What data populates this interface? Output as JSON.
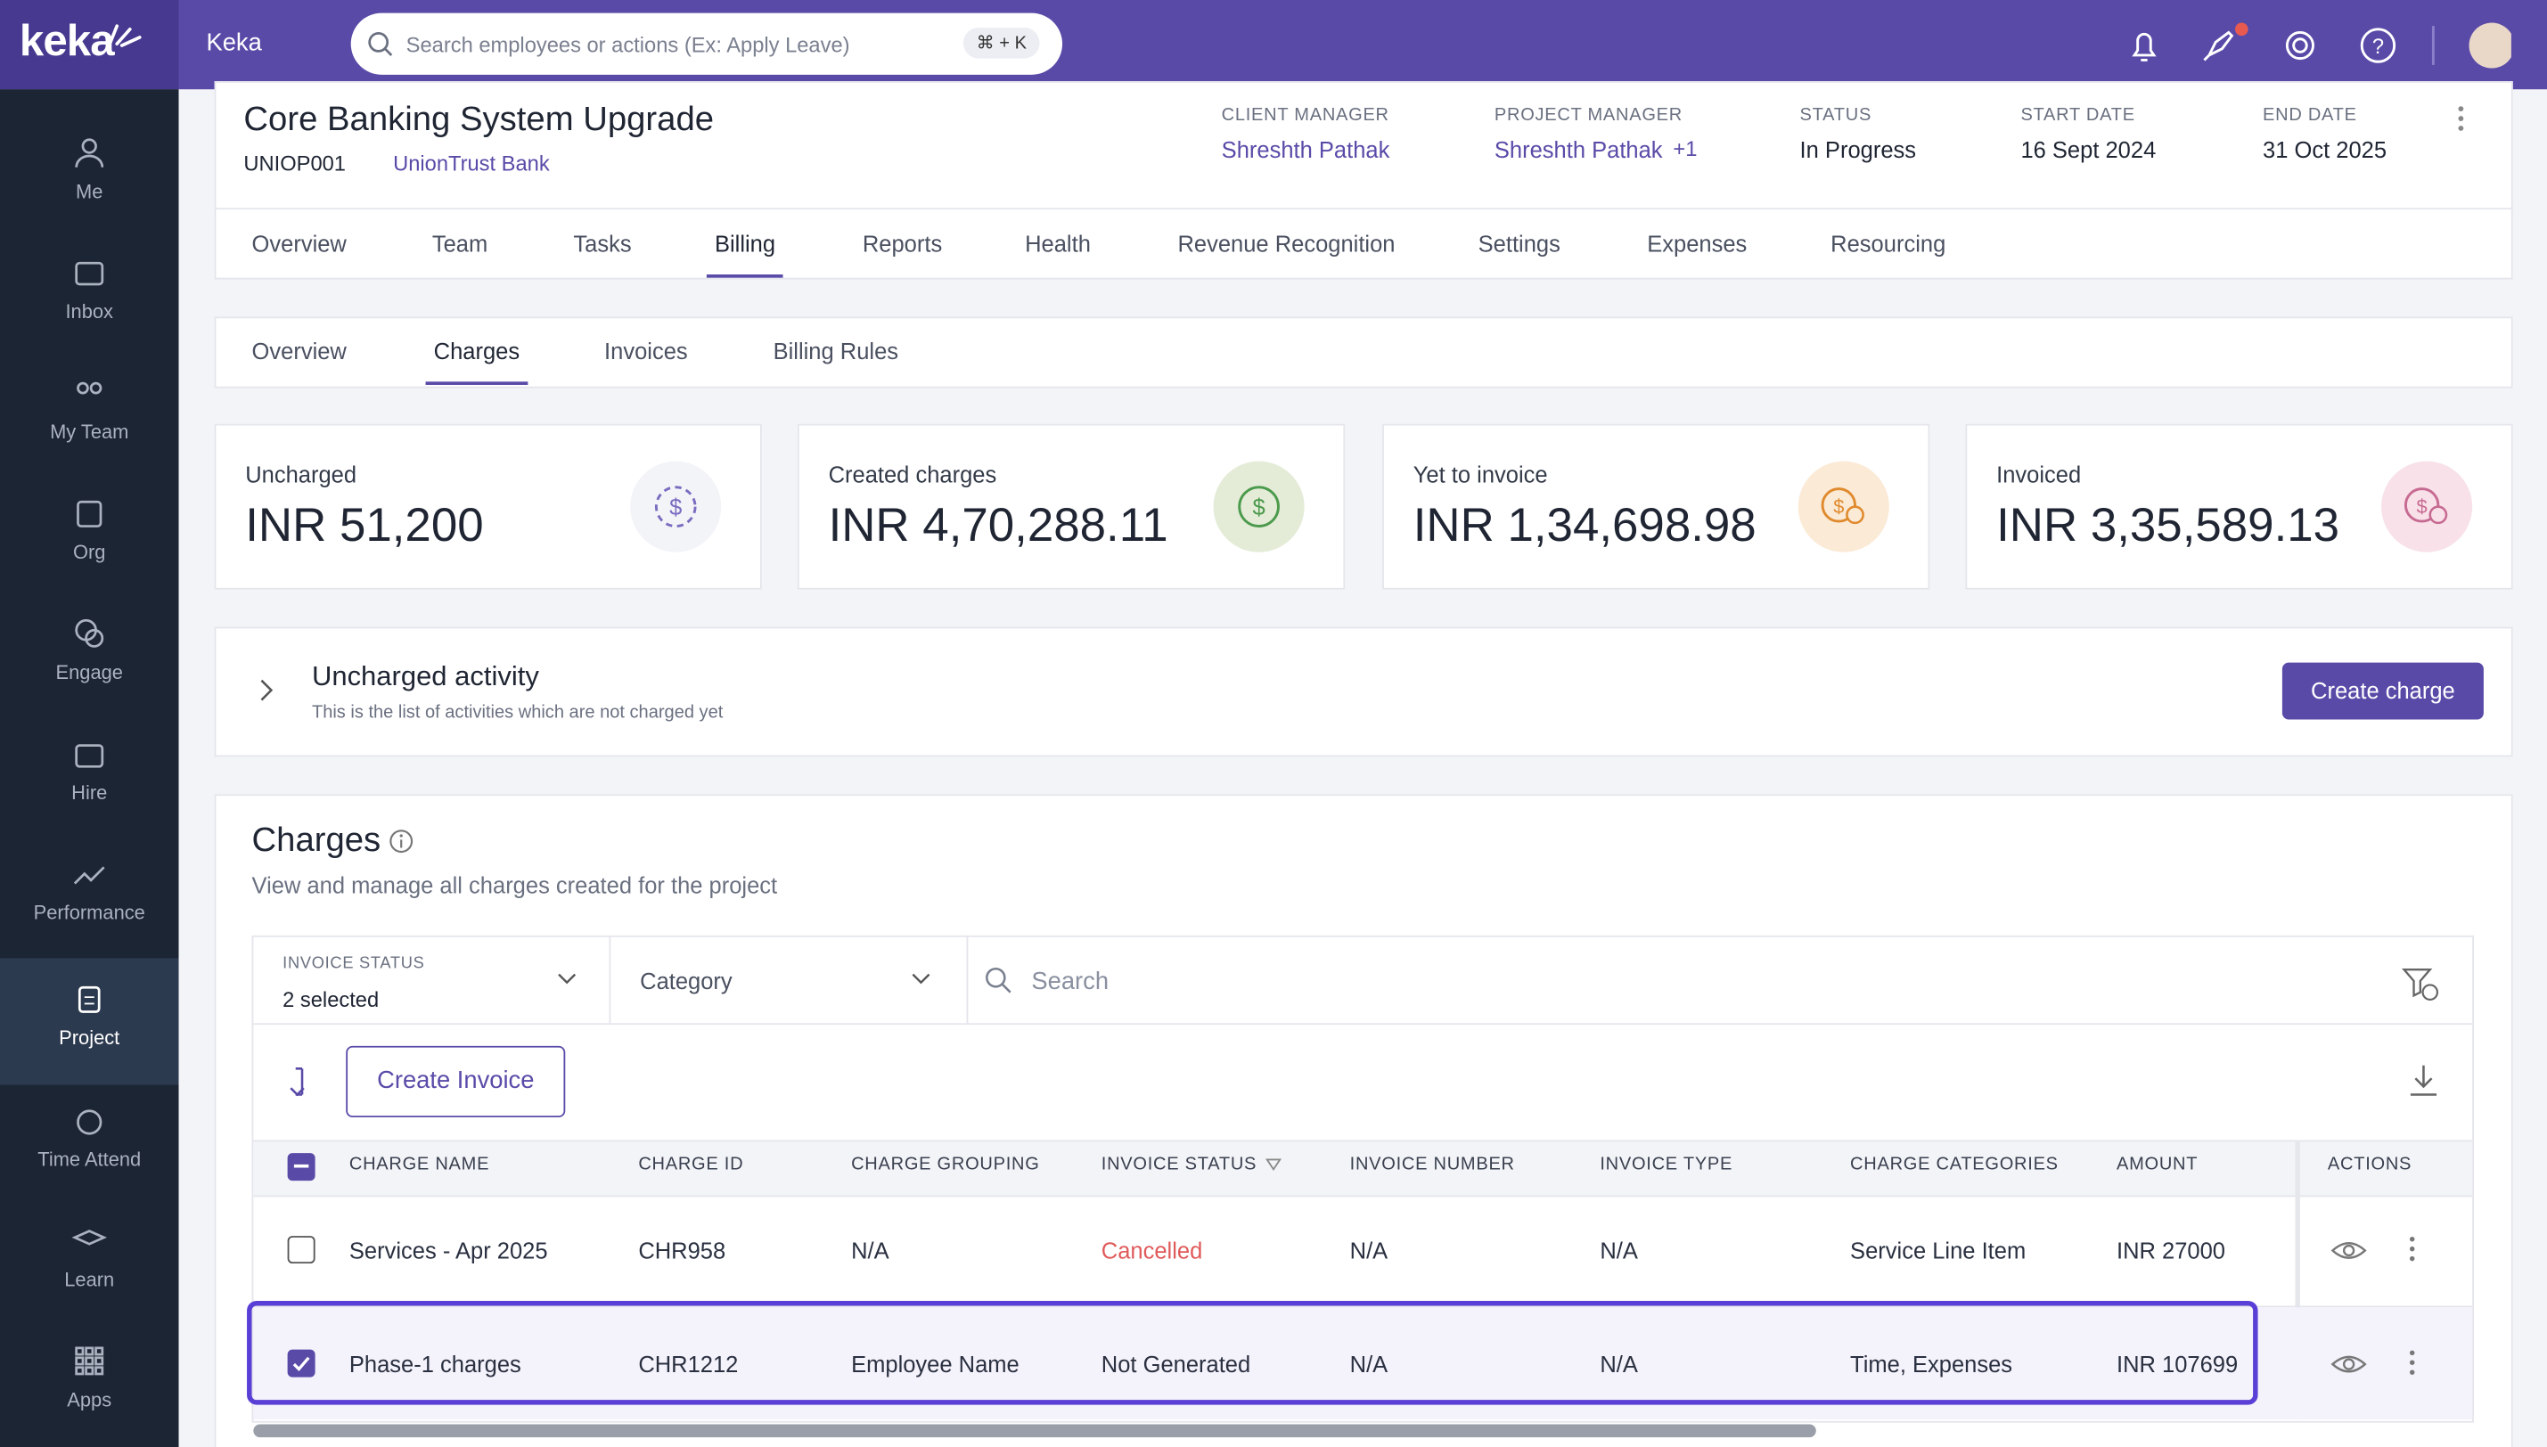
{
  "app": {
    "logo": "keka",
    "company": "Keka",
    "search_placeholder": "Search employees or actions (Ex: Apply Leave)",
    "search_shortcut": "⌘ + K"
  },
  "sidebar": [
    "Me",
    "Inbox",
    "My Team",
    "Org",
    "Engage",
    "Hire",
    "Performance",
    "Project",
    "Time Attend",
    "Learn",
    "Apps"
  ],
  "project": {
    "name": "Core Banking System Upgrade",
    "code": "UNIOP001",
    "client": "UnionTrust Bank",
    "fields": [
      {
        "label": "CLIENT MANAGER",
        "value": "Shreshth Pathak"
      },
      {
        "label": "PROJECT MANAGER",
        "value": "Shreshth Pathak",
        "extra": "+1"
      },
      {
        "label": "STATUS",
        "value": "In Progress"
      },
      {
        "label": "START DATE",
        "value": "16 Sept 2024"
      },
      {
        "label": "END DATE",
        "value": "31 Oct 2025"
      }
    ]
  },
  "tabs": [
    "Overview",
    "Team",
    "Tasks",
    "Billing",
    "Reports",
    "Health",
    "Revenue Recognition",
    "Settings",
    "Expenses",
    "Resourcing"
  ],
  "sub_tabs": [
    "Overview",
    "Charges",
    "Invoices",
    "Billing Rules"
  ],
  "summary_cards": [
    {
      "label": "Uncharged",
      "value": "INR 51,200"
    },
    {
      "label": "Created charges",
      "value": "INR 4,70,288.11"
    },
    {
      "label": "Yet to invoice",
      "value": "INR 1,34,698.98"
    },
    {
      "label": "Invoiced",
      "value": "INR 3,35,589.13"
    }
  ],
  "uncharged": {
    "title": "Uncharged activity",
    "subtitle": "This is the list of activities which are not charged yet",
    "button": "Create charge"
  },
  "charges": {
    "title": "Charges",
    "subtitle": "View and manage all charges created for the project",
    "filter_status": {
      "label": "INVOICE STATUS",
      "value": "2 selected"
    },
    "filter_category": "Category",
    "search_placeholder": "Search",
    "create_invoice": "Create Invoice",
    "columns": [
      "CHARGE NAME",
      "CHARGE ID",
      "CHARGE GROUPING",
      "INVOICE STATUS",
      "INVOICE NUMBER",
      "INVOICE TYPE",
      "CHARGE CATEGORIES",
      "AMOUNT",
      "ACTIONS"
    ],
    "rows": [
      [
        "Services - Apr 2025",
        "CHR958",
        "N/A",
        "Cancelled",
        "N/A",
        "N/A",
        "Service Line Item",
        "INR 27000"
      ],
      [
        "Phase-1 charges",
        "CHR1212",
        "Employee Name",
        "Not Generated",
        "N/A",
        "N/A",
        "Time, Expenses",
        "INR 107699"
      ]
    ]
  }
}
